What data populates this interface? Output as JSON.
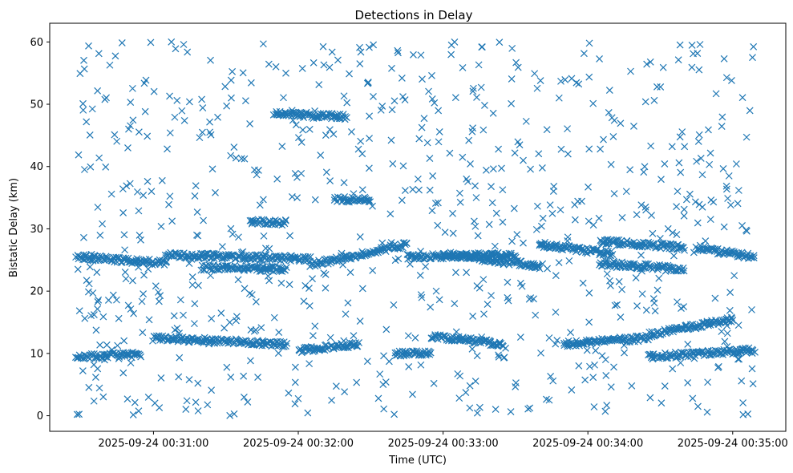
{
  "chart_data": {
    "type": "scatter",
    "title": "Detections in Delay",
    "xlabel": "Time (UTC)",
    "ylabel": "Bistatic Delay (km)",
    "marker": "x",
    "color": "#1f77b4",
    "grid": false,
    "legend": "none",
    "xlim": [
      "2025-09-24 00:30:17",
      "2025-09-24 00:35:22"
    ],
    "ylim": [
      -2.5,
      63
    ],
    "x_ticks": [
      "2025-09-24 00:31:00",
      "2025-09-24 00:32:00",
      "2025-09-24 00:33:00",
      "2025-09-24 00:34:00",
      "2025-09-24 00:35:00"
    ],
    "y_ticks": [
      0,
      10,
      20,
      30,
      40,
      50,
      60
    ],
    "time_range": [
      "2025-09-24 00:30:28",
      "2025-09-24 00:35:09"
    ],
    "tracks": [
      {
        "x": [
          "2025-09-24 00:30:28",
          "2025-09-24 00:31:05"
        ],
        "y": [
          25.5,
          24.5
        ]
      },
      {
        "x": [
          "2025-09-24 00:31:05",
          "2025-09-24 00:32:05"
        ],
        "y": [
          25.8,
          25.2
        ]
      },
      {
        "x": [
          "2025-09-24 00:31:20",
          "2025-09-24 00:31:55"
        ],
        "y": [
          23.8,
          23.5
        ]
      },
      {
        "x": [
          "2025-09-24 00:32:05",
          "2025-09-24 00:32:45"
        ],
        "y": [
          24.2,
          27.5
        ]
      },
      {
        "x": [
          "2025-09-24 00:32:45",
          "2025-09-24 00:33:30"
        ],
        "y": [
          25.5,
          25.8
        ]
      },
      {
        "x": [
          "2025-09-24 00:33:00",
          "2025-09-24 00:33:40"
        ],
        "y": [
          26.0,
          24.0
        ]
      },
      {
        "x": [
          "2025-09-24 00:33:40",
          "2025-09-24 00:34:10"
        ],
        "y": [
          27.5,
          26.0
        ]
      },
      {
        "x": [
          "2025-09-24 00:34:05",
          "2025-09-24 00:34:40"
        ],
        "y": [
          28.0,
          27.0
        ]
      },
      {
        "x": [
          "2025-09-24 00:34:05",
          "2025-09-24 00:34:40"
        ],
        "y": [
          24.5,
          23.5
        ]
      },
      {
        "x": [
          "2025-09-24 00:34:45",
          "2025-09-24 00:35:09"
        ],
        "y": [
          27.0,
          25.5
        ]
      },
      {
        "x": [
          "2025-09-24 00:30:28",
          "2025-09-24 00:30:55"
        ],
        "y": [
          9.5,
          9.8
        ]
      },
      {
        "x": [
          "2025-09-24 00:31:00",
          "2025-09-24 00:31:55"
        ],
        "y": [
          12.5,
          11.5
        ]
      },
      {
        "x": [
          "2025-09-24 00:32:00",
          "2025-09-24 00:32:25"
        ],
        "y": [
          10.5,
          11.5
        ]
      },
      {
        "x": [
          "2025-09-24 00:32:40",
          "2025-09-24 00:32:55"
        ],
        "y": [
          10.0,
          10.0
        ]
      },
      {
        "x": [
          "2025-09-24 00:32:55",
          "2025-09-24 00:33:25"
        ],
        "y": [
          12.8,
          11.5
        ]
      },
      {
        "x": [
          "2025-09-24 00:33:50",
          "2025-09-24 00:34:25"
        ],
        "y": [
          11.5,
          12.5
        ]
      },
      {
        "x": [
          "2025-09-24 00:34:25",
          "2025-09-24 00:35:00"
        ],
        "y": [
          13.0,
          15.5
        ]
      },
      {
        "x": [
          "2025-09-24 00:34:25",
          "2025-09-24 00:35:09"
        ],
        "y": [
          9.5,
          10.5
        ]
      },
      {
        "x": [
          "2025-09-24 00:31:50",
          "2025-09-24 00:32:20"
        ],
        "y": [
          48.5,
          48.0
        ]
      },
      {
        "x": [
          "2025-09-24 00:31:40",
          "2025-09-24 00:31:55"
        ],
        "y": [
          31.2,
          31.0
        ]
      },
      {
        "x": [
          "2025-09-24 00:32:15",
          "2025-09-24 00:32:30"
        ],
        "y": [
          34.8,
          34.6
        ]
      }
    ]
  }
}
